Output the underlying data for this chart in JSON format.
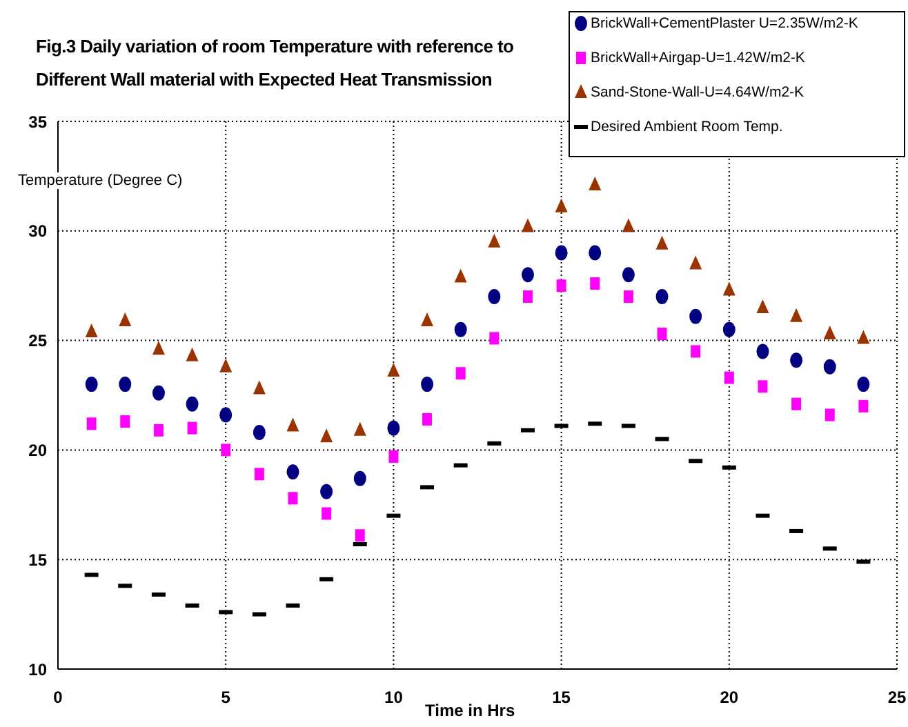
{
  "chart_data": {
    "type": "scatter",
    "title": "Fig.3  Daily variation of room Temperature with reference to Different  Wall material with Expected Heat Transmission",
    "xlabel": "Time in Hrs",
    "ylabel": "Temperature (Degree C)",
    "x": [
      1,
      2,
      3,
      4,
      5,
      6,
      7,
      8,
      9,
      10,
      11,
      12,
      13,
      14,
      15,
      16,
      17,
      18,
      19,
      20,
      21,
      22,
      23,
      24
    ],
    "series": [
      {
        "name": "BrickWall+CementPlaster U=2.35W/m2-K",
        "color": "#000080",
        "marker": "circle",
        "values": [
          23.0,
          23.0,
          22.6,
          22.1,
          21.6,
          20.8,
          19.0,
          18.1,
          18.7,
          21.0,
          23.0,
          25.5,
          27.0,
          28.0,
          29.0,
          29.0,
          28.0,
          27.0,
          26.1,
          25.5,
          24.5,
          24.1,
          23.8,
          23.0
        ]
      },
      {
        "name": "BrickWall+Airgap-U=1.42W/m2-K",
        "color": "#ff00ff",
        "marker": "square",
        "values": [
          21.2,
          21.3,
          20.9,
          21.0,
          20.0,
          18.9,
          17.8,
          17.1,
          16.1,
          19.7,
          21.4,
          23.5,
          25.1,
          27.0,
          27.5,
          27.6,
          27.0,
          25.3,
          24.5,
          23.3,
          22.9,
          22.1,
          21.6,
          22.0
        ]
      },
      {
        "name": "Sand-Stone-Wall-U=4.64W/m2-K",
        "color": "#993300",
        "marker": "triangle",
        "values": [
          25.4,
          25.9,
          24.6,
          24.3,
          23.8,
          22.8,
          21.1,
          20.6,
          20.9,
          23.6,
          25.9,
          27.9,
          29.5,
          30.2,
          31.1,
          32.1,
          30.2,
          29.4,
          28.5,
          27.3,
          26.5,
          26.1,
          25.3,
          25.1
        ]
      },
      {
        "name": "Desired Ambient Room Temp.",
        "color": "#000000",
        "values": [
          14.3,
          13.8,
          13.4,
          12.9,
          12.6,
          12.5,
          12.9,
          14.1,
          15.7,
          17.0,
          18.3,
          19.3,
          20.3,
          20.9,
          21.1,
          21.2,
          21.1,
          20.5,
          19.5,
          19.2,
          17.0,
          16.3,
          15.5,
          14.9
        ]
      }
    ],
    "xlim": [
      0,
      25
    ],
    "xticks": [
      0,
      5,
      10,
      15,
      20,
      25
    ],
    "ylim": [
      10,
      35
    ],
    "yticks": [
      10,
      15,
      20,
      25,
      30,
      35
    ],
    "grid": true,
    "legend": "top right"
  }
}
